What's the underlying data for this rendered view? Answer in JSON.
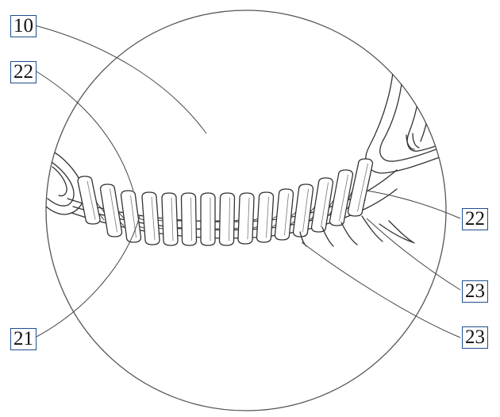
{
  "labels": {
    "ref_10": "10",
    "ref_22_top": "22",
    "ref_22_right": "22",
    "ref_23_upper": "23",
    "ref_23_lower": "23",
    "ref_21": "21"
  }
}
